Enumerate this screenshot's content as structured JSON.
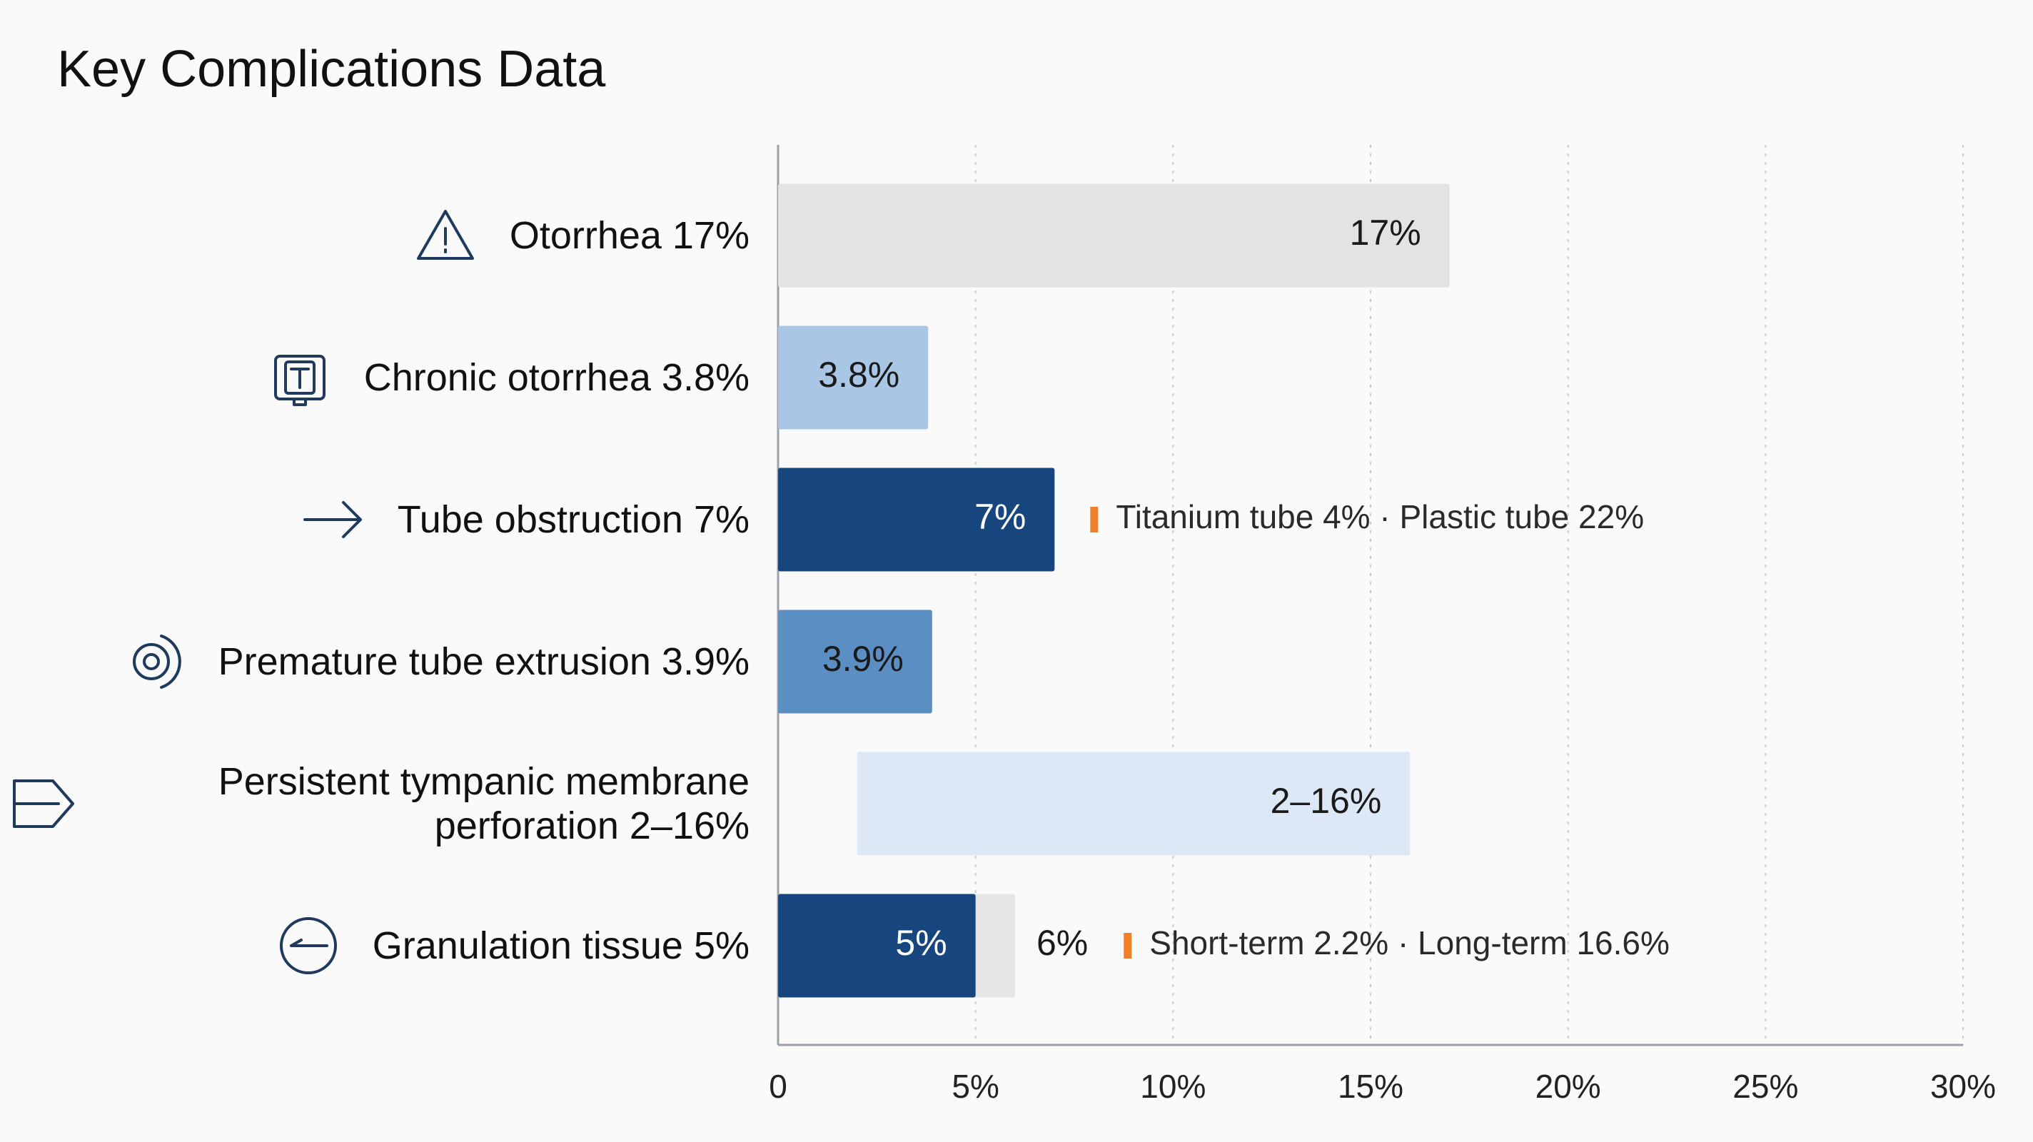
{
  "chart_data": {
    "type": "bar",
    "orientation": "horizontal",
    "title": "Key Complications Data",
    "categories": [
      "Otorrhea 17%",
      "Chronic otorrhea 3.8%",
      "Tube obstruction 7%",
      "Premature tube extrusion 3.9%",
      "Persistent tympanic membrane perforation 2–16%",
      "Granulation tissue 5%"
    ],
    "series": [
      {
        "values": [
          17,
          3.8,
          7,
          3.9,
          16,
          5
        ],
        "starts": [
          null,
          null,
          null,
          null,
          2,
          null
        ],
        "value_labels": [
          "17%",
          "3.8%",
          "7%",
          "3.9%",
          "2–16%",
          "5%"
        ],
        "colors": [
          "#e3e3e3",
          "#a9c6e4",
          "#17467f",
          "#5b8fc4",
          "#dce8f5",
          "#17467f"
        ]
      },
      {
        "values": [
          null,
          null,
          null,
          null,
          null,
          6
        ],
        "value_labels": [
          null,
          null,
          null,
          null,
          null,
          "6%"
        ],
        "color": "#e6e6e6"
      }
    ],
    "annotations": [
      null,
      null,
      "Titanium tube 4% · Plastic tube 22%",
      null,
      null,
      "Short-term 2.2% · Long-term 16.6%"
    ],
    "xlim": [
      0,
      30
    ],
    "xticks": [
      0,
      {
        "value": 5,
        "label": "5%"
      },
      {
        "value": 10,
        "label": "10%"
      },
      {
        "value": 15,
        "label": "15%"
      },
      {
        "value": 20,
        "label": "20%"
      },
      {
        "value": 25,
        "label": "25%"
      },
      {
        "value": 30,
        "label": "30%"
      }
    ],
    "grid": true
  }
}
